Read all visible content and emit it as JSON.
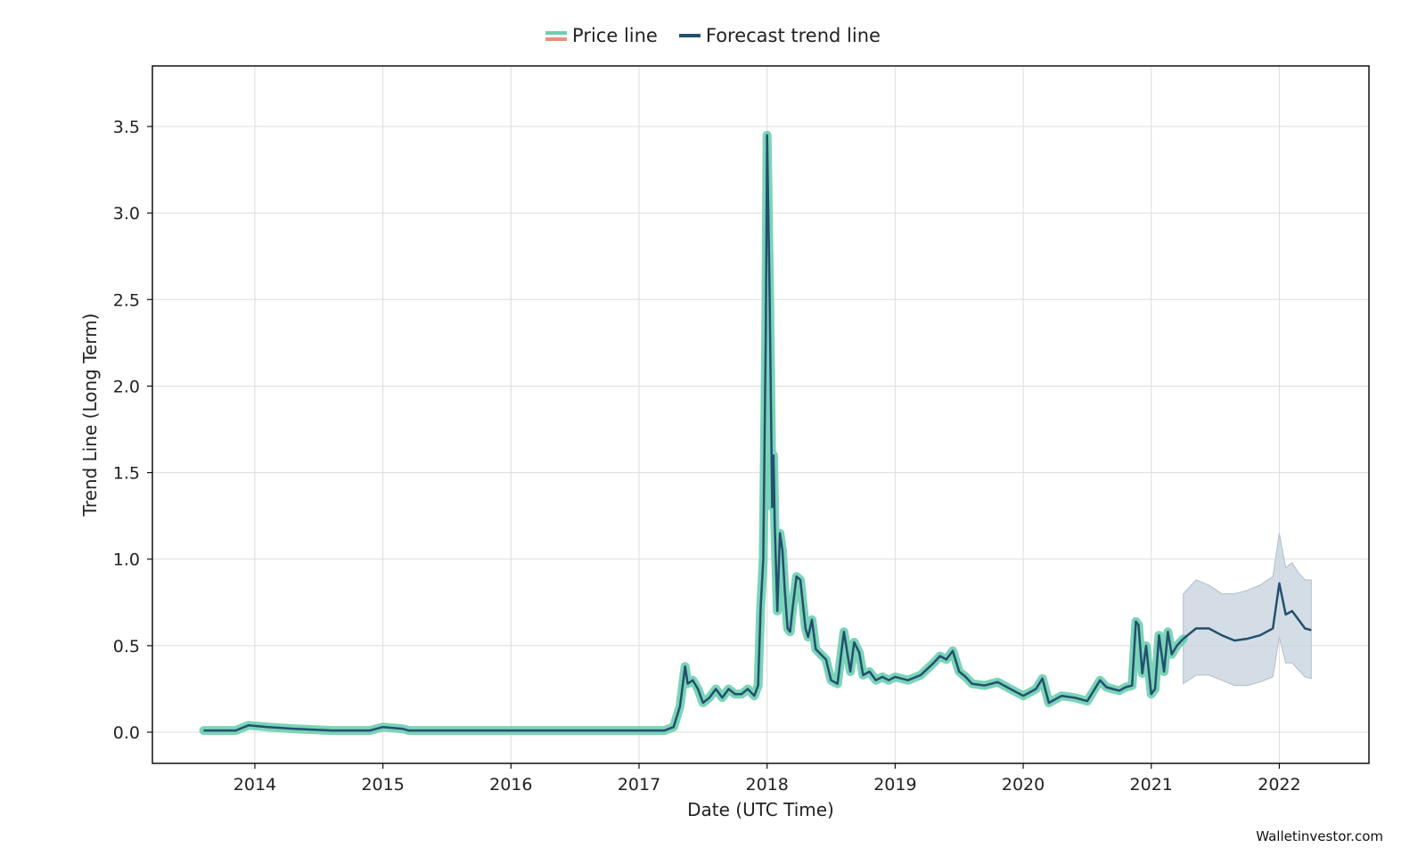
{
  "legend": {
    "price_label": "Price line",
    "forecast_label": "Forecast trend line"
  },
  "watermark": "Walletinvestor.com",
  "colors": {
    "price_line": "#6dcfb0",
    "price_alt": "#e8907a",
    "trend_line": "#23506e",
    "confidence_band": "#c5d2dc",
    "grid": "#dddddd"
  },
  "chart_data": {
    "type": "line",
    "title": "",
    "xlabel": "Date (UTC Time)",
    "ylabel": "Trend Line (Long Term)",
    "xlim": [
      2013.2,
      2022.7
    ],
    "ylim": [
      -0.18,
      3.85
    ],
    "x_ticks": [
      2014,
      2015,
      2016,
      2017,
      2018,
      2019,
      2020,
      2021,
      2022
    ],
    "y_ticks": [
      0.0,
      0.5,
      1.0,
      1.5,
      2.0,
      2.5,
      3.0,
      3.5
    ],
    "y_tick_labels": [
      "0.0",
      "0.5",
      "1.0",
      "1.5",
      "2.0",
      "2.5",
      "3.0",
      "3.5"
    ],
    "grid": true,
    "legend_position": "top-center",
    "series": [
      {
        "name": "Price line",
        "x": [
          2013.6,
          2013.7,
          2013.85,
          2013.95,
          2014.1,
          2014.3,
          2014.6,
          2014.9,
          2015.0,
          2015.15,
          2015.2,
          2015.5,
          2016.0,
          2016.5,
          2017.0,
          2017.2,
          2017.27,
          2017.32,
          2017.36,
          2017.38,
          2017.42,
          2017.46,
          2017.5,
          2017.55,
          2017.6,
          2017.65,
          2017.7,
          2017.75,
          2017.8,
          2017.85,
          2017.9,
          2017.93,
          2017.95,
          2017.97,
          2017.99,
          2018.0,
          2018.01,
          2018.02,
          2018.03,
          2018.04,
          2018.05,
          2018.06,
          2018.08,
          2018.1,
          2018.12,
          2018.14,
          2018.16,
          2018.18,
          2018.2,
          2018.23,
          2018.26,
          2018.3,
          2018.32,
          2018.35,
          2018.38,
          2018.42,
          2018.46,
          2018.5,
          2018.55,
          2018.6,
          2018.65,
          2018.68,
          2018.72,
          2018.75,
          2018.8,
          2018.85,
          2018.9,
          2018.95,
          2019.0,
          2019.1,
          2019.2,
          2019.3,
          2019.35,
          2019.4,
          2019.45,
          2019.5,
          2019.55,
          2019.6,
          2019.7,
          2019.8,
          2019.9,
          2020.0,
          2020.1,
          2020.15,
          2020.2,
          2020.3,
          2020.4,
          2020.5,
          2020.6,
          2020.65,
          2020.7,
          2020.75,
          2020.8,
          2020.85,
          2020.88,
          2020.9,
          2020.93,
          2020.96,
          2021.0,
          2021.03,
          2021.06,
          2021.1,
          2021.13,
          2021.16,
          2021.2,
          2021.25
        ],
        "values": [
          0.01,
          0.01,
          0.01,
          0.04,
          0.03,
          0.02,
          0.01,
          0.01,
          0.03,
          0.02,
          0.01,
          0.01,
          0.01,
          0.01,
          0.01,
          0.01,
          0.03,
          0.15,
          0.38,
          0.28,
          0.3,
          0.25,
          0.17,
          0.2,
          0.25,
          0.2,
          0.25,
          0.22,
          0.22,
          0.25,
          0.21,
          0.27,
          0.72,
          1.0,
          2.3,
          3.45,
          3.0,
          2.5,
          1.9,
          1.3,
          1.6,
          1.2,
          0.7,
          1.15,
          1.05,
          0.8,
          0.6,
          0.58,
          0.72,
          0.9,
          0.88,
          0.6,
          0.55,
          0.65,
          0.48,
          0.45,
          0.42,
          0.3,
          0.28,
          0.58,
          0.35,
          0.52,
          0.46,
          0.33,
          0.35,
          0.3,
          0.32,
          0.3,
          0.32,
          0.3,
          0.33,
          0.4,
          0.44,
          0.42,
          0.47,
          0.35,
          0.32,
          0.28,
          0.27,
          0.29,
          0.25,
          0.21,
          0.25,
          0.31,
          0.17,
          0.21,
          0.2,
          0.18,
          0.3,
          0.26,
          0.25,
          0.24,
          0.26,
          0.27,
          0.64,
          0.62,
          0.34,
          0.5,
          0.22,
          0.25,
          0.56,
          0.35,
          0.58,
          0.45,
          0.5,
          0.54
        ]
      },
      {
        "name": "Forecast trend line",
        "x": [
          2021.25,
          2021.35,
          2021.45,
          2021.55,
          2021.65,
          2021.75,
          2021.85,
          2021.95,
          2022.0,
          2022.05,
          2022.1,
          2022.15,
          2022.2,
          2022.25
        ],
        "values": [
          0.54,
          0.6,
          0.6,
          0.56,
          0.53,
          0.54,
          0.56,
          0.6,
          0.86,
          0.68,
          0.7,
          0.65,
          0.6,
          0.59
        ],
        "band_upper": [
          0.8,
          0.88,
          0.85,
          0.8,
          0.8,
          0.82,
          0.85,
          0.9,
          1.15,
          0.95,
          0.98,
          0.92,
          0.88,
          0.88
        ],
        "band_lower": [
          0.28,
          0.33,
          0.33,
          0.3,
          0.27,
          0.27,
          0.29,
          0.32,
          0.55,
          0.4,
          0.4,
          0.36,
          0.32,
          0.31
        ]
      }
    ]
  }
}
